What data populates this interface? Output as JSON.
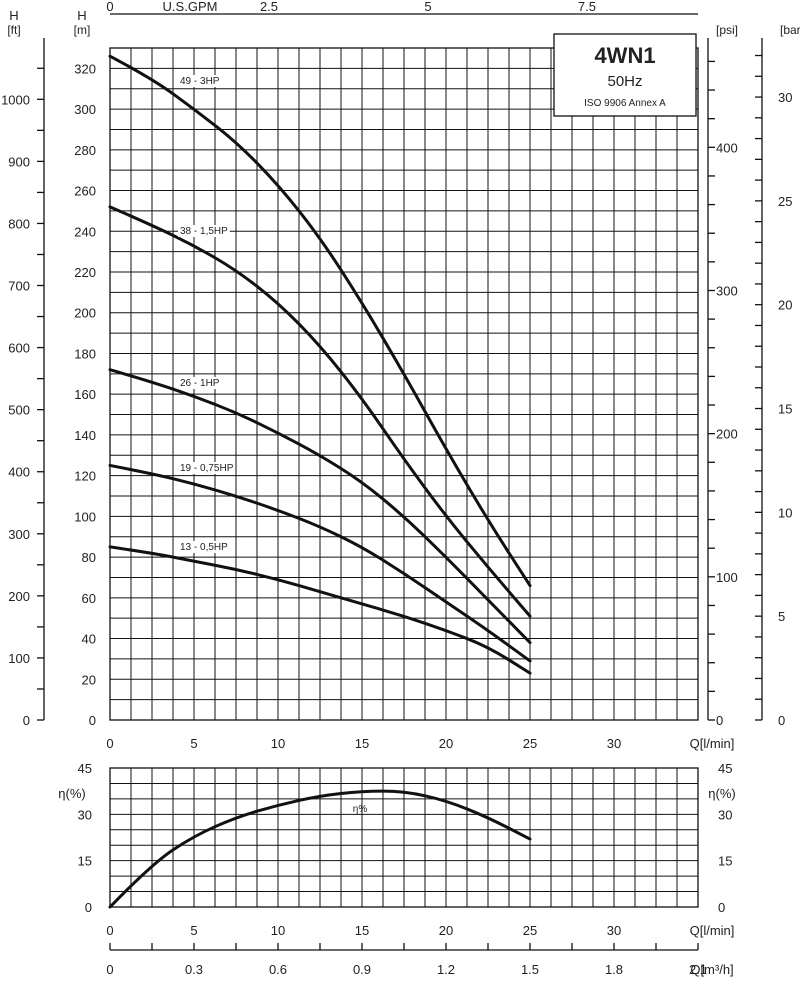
{
  "chart_data": [
    {
      "type": "line",
      "title": "4WN1",
      "subtitle": "50Hz",
      "standard": "ISO 9906 Annex A",
      "x_unit": "Q[l/min]",
      "x_ticks": [
        "0",
        "5",
        "10",
        "15",
        "20",
        "25",
        "30"
      ],
      "xlim": [
        0,
        35
      ],
      "ylabel_left_m": "H\n[m]",
      "ylabel_left_ft": "H\n[ft]",
      "ylabel_right_psi": "[psi]",
      "ylabel_right_bar": "[bar]",
      "ylim": [
        0,
        330
      ],
      "y_ticks_m": [
        "0",
        "20",
        "40",
        "60",
        "80",
        "100",
        "120",
        "140",
        "160",
        "180",
        "200",
        "220",
        "240",
        "260",
        "280",
        "300",
        "320"
      ],
      "y_ticks_ft": [
        "0",
        "100",
        "200",
        "300",
        "400",
        "500",
        "600",
        "700",
        "800",
        "900",
        "1000"
      ],
      "y_ticks_psi": [
        "0",
        "100",
        "200",
        "300",
        "400"
      ],
      "y_ticks_bar": [
        "0",
        "5",
        "10",
        "15",
        "20",
        "25",
        "30"
      ],
      "top_axis_label": "U.S.GPM",
      "top_axis_ticks": [
        "0",
        "2.5",
        "5",
        "7.5"
      ],
      "grid": true,
      "series": [
        {
          "name": "49 - 3HP",
          "x": [
            0,
            2.5,
            5,
            7.5,
            10,
            12.5,
            15,
            17.5,
            20,
            22.5,
            25
          ],
          "y": [
            326,
            315,
            300,
            284,
            263,
            237,
            205,
            170,
            133,
            98,
            66
          ]
        },
        {
          "name": "38 - 1,5HP",
          "x": [
            0,
            2.5,
            5,
            7.5,
            10,
            12.5,
            15,
            17.5,
            20,
            22.5,
            25
          ],
          "y": [
            252,
            243,
            233,
            221,
            205,
            184,
            158,
            128,
            100,
            75,
            51
          ]
        },
        {
          "name": "26 - 1HP",
          "x": [
            0,
            2.5,
            5,
            7.5,
            10,
            12.5,
            15,
            17.5,
            20,
            22.5,
            25
          ],
          "y": [
            172,
            166,
            159,
            151,
            141,
            130,
            117,
            100,
            80,
            59,
            38
          ]
        },
        {
          "name": "19 - 0,75HP",
          "x": [
            0,
            2.5,
            5,
            7.5,
            10,
            12.5,
            15,
            17.5,
            20,
            22.5,
            25
          ],
          "y": [
            125,
            121,
            116,
            110,
            103,
            95,
            85,
            72,
            58,
            44,
            29
          ]
        },
        {
          "name": "13 - 0,5HP",
          "x": [
            0,
            2.5,
            5,
            7.5,
            10,
            12.5,
            15,
            17.5,
            20,
            22.5,
            25
          ],
          "y": [
            85,
            82,
            78,
            74,
            69,
            63,
            57,
            51,
            44,
            36,
            23
          ]
        }
      ]
    },
    {
      "type": "line",
      "x_unit": "Q[l/min]",
      "x_ticks": [
        "0",
        "5",
        "10",
        "15",
        "20",
        "25",
        "30"
      ],
      "xlim": [
        0,
        35
      ],
      "ylabel": "η(%)",
      "ylim": [
        0,
        45
      ],
      "y_ticks": [
        "0",
        "15",
        "30",
        "45"
      ],
      "grid": true,
      "series": [
        {
          "name": "η%",
          "x": [
            0,
            2.5,
            5,
            7.5,
            10,
            12.5,
            15,
            17.5,
            20,
            22.5,
            25
          ],
          "y": [
            0,
            14,
            23,
            29,
            33,
            36,
            37.5,
            37.5,
            34.5,
            29,
            22
          ]
        }
      ]
    },
    {
      "type": "axis",
      "x_unit": "Q[m³/h]",
      "x_ticks": [
        "0",
        "0.3",
        "0.6",
        "0.9",
        "1.2",
        "1.5",
        "1.8",
        "2.1"
      ]
    }
  ]
}
